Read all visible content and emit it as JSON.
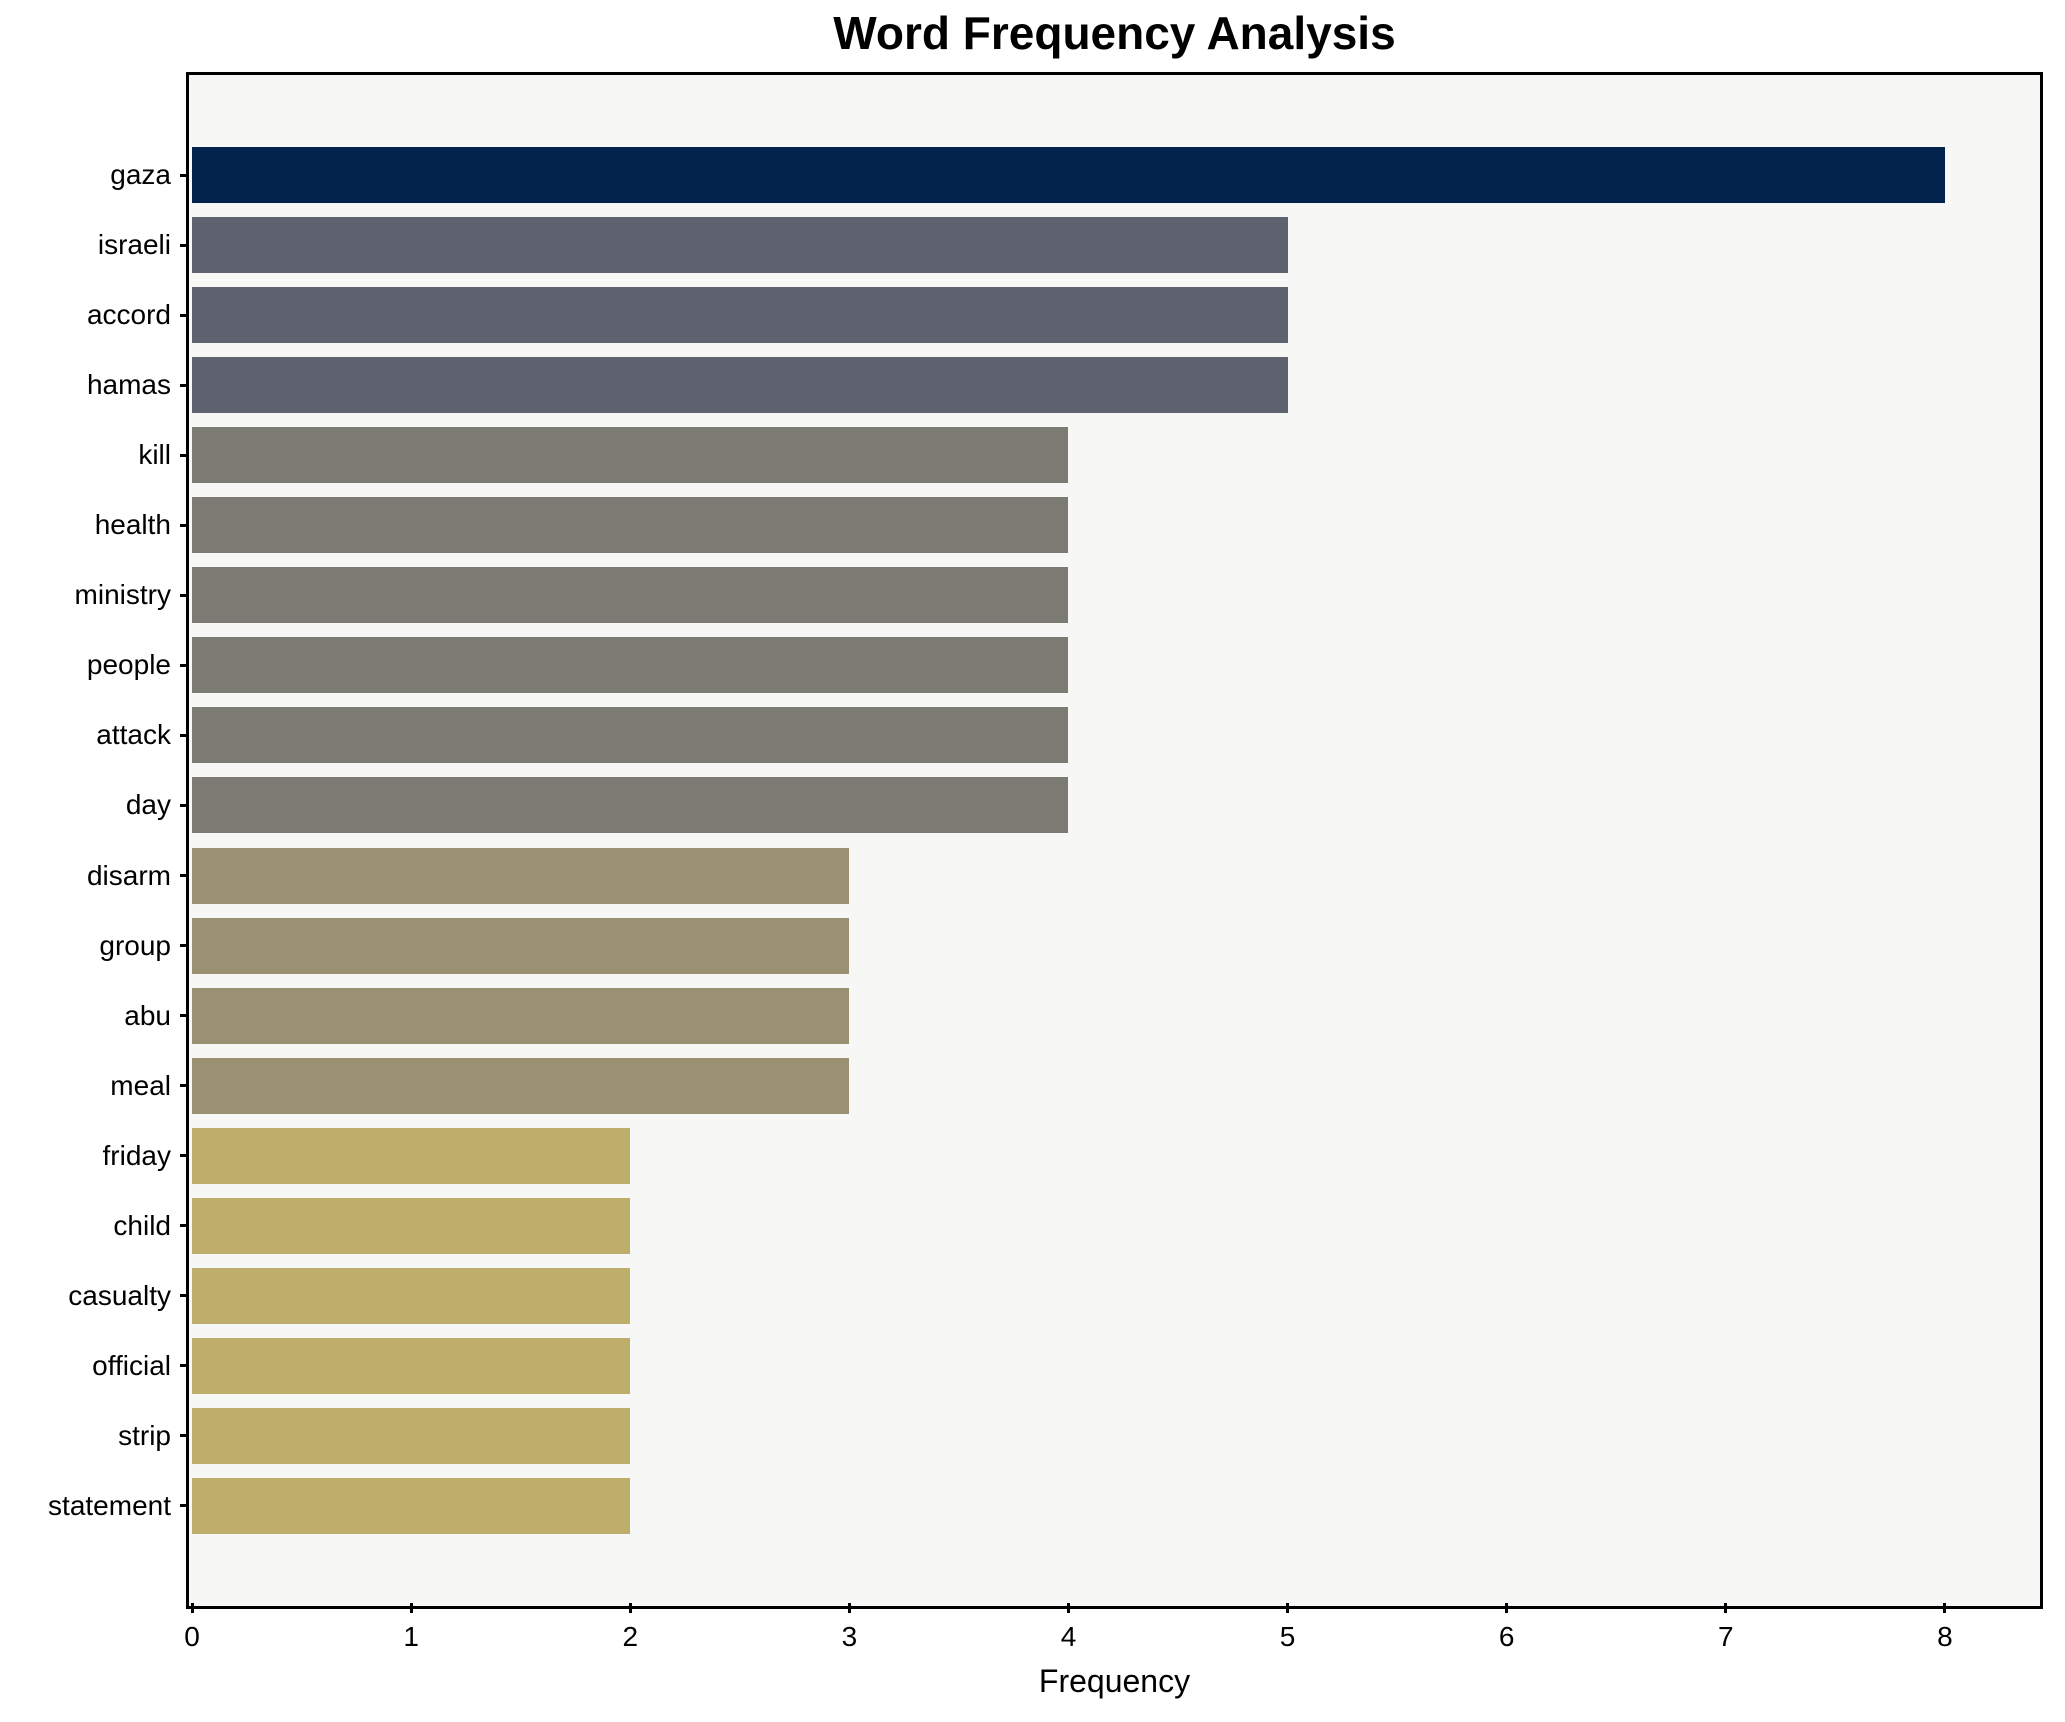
{
  "chart_data": {
    "type": "bar",
    "orientation": "horizontal",
    "title": "Word Frequency Analysis",
    "xlabel": "Frequency",
    "ylabel": "",
    "categories": [
      "gaza",
      "israeli",
      "accord",
      "hamas",
      "kill",
      "health",
      "ministry",
      "people",
      "attack",
      "day",
      "disarm",
      "group",
      "abu",
      "meal",
      "friday",
      "child",
      "casualty",
      "official",
      "strip",
      "statement"
    ],
    "values": [
      8,
      5,
      5,
      5,
      4,
      4,
      4,
      4,
      4,
      4,
      3,
      3,
      3,
      3,
      2,
      2,
      2,
      2,
      2,
      2
    ],
    "bar_colors": [
      "#03224c",
      "#5e626e",
      "#5e626e",
      "#5e626e",
      "#7b7a73",
      "#7b7a73",
      "#7b7a73",
      "#7b7a73",
      "#7b7a73",
      "#7b7a73",
      "#9a9173",
      "#9a9173",
      "#9a9173",
      "#9a9173",
      "#bdae6c",
      "#bdae6c",
      "#bdae6c",
      "#bdae6c",
      "#bdae6c",
      "#bdae6c"
    ],
    "xlim": [
      0,
      8.42
    ],
    "xticks": [
      0,
      1,
      2,
      3,
      4,
      5,
      6,
      7,
      8
    ],
    "grid": false,
    "legend_position": "none",
    "plot_bg": "#f7f7f5",
    "fig_bg": "#ffffff",
    "bar_height_ratio": 0.8
  }
}
